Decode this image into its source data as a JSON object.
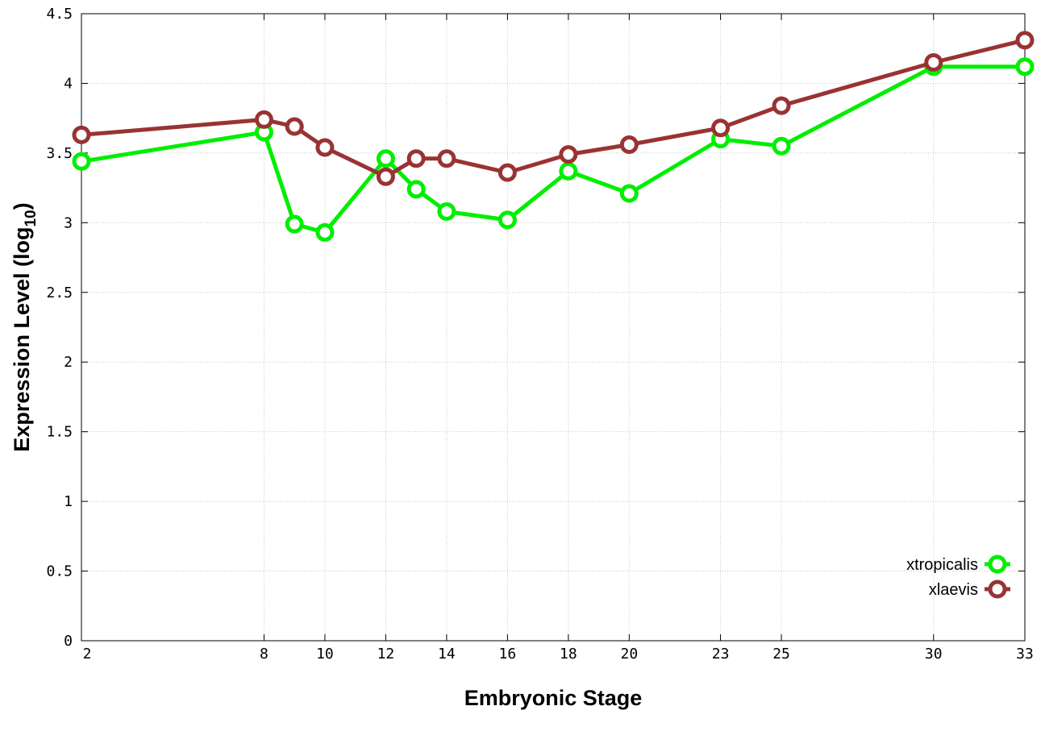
{
  "chart_data": {
    "type": "line",
    "xlabel": "Embryonic Stage",
    "ylabel": "Expression Level (log",
    "ylabel_subscript": "10",
    "ylabel_suffix": ")",
    "x": [
      2,
      8,
      9,
      10,
      12,
      13,
      14,
      16,
      18,
      20,
      23,
      25,
      30,
      33
    ],
    "x_ticks": [
      "2",
      "8",
      "10",
      "12",
      "14",
      "16",
      "18",
      "20",
      "23",
      "25",
      "30",
      "33"
    ],
    "y_ticks": [
      "0",
      "0.5",
      "1",
      "1.5",
      "2",
      "2.5",
      "3",
      "3.5",
      "4",
      "4.5"
    ],
    "ylim": [
      0,
      4.5
    ],
    "grid": true,
    "legend_position": "bottom-right",
    "series": [
      {
        "name": "xtropicalis",
        "color": "#00ee00",
        "values": [
          3.44,
          3.65,
          2.99,
          2.93,
          3.46,
          3.24,
          3.08,
          3.02,
          3.37,
          3.21,
          3.6,
          3.55,
          4.12,
          4.12
        ]
      },
      {
        "name": "xlaevis",
        "color": "#993333",
        "values": [
          3.63,
          3.74,
          3.69,
          3.54,
          3.33,
          3.46,
          3.46,
          3.36,
          3.49,
          3.56,
          3.68,
          3.84,
          4.15,
          4.31
        ]
      }
    ]
  }
}
